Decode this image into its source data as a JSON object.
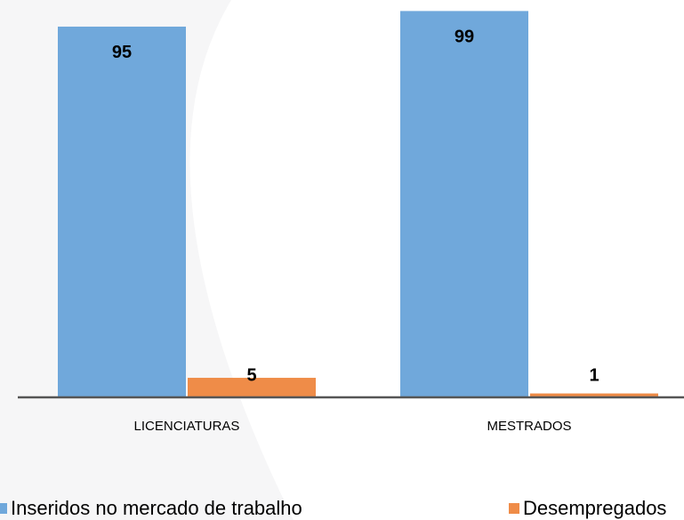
{
  "chart_data": {
    "type": "bar",
    "categories": [
      "LICENCIATURAS",
      "MESTRADOS"
    ],
    "series": [
      {
        "name": "Inseridos no mercado de trabalho",
        "color": "#70a8db",
        "values": [
          95,
          99
        ]
      },
      {
        "name": "Desempregados",
        "color": "#ef8c48",
        "values": [
          5,
          1
        ]
      }
    ],
    "ylim": [
      0,
      100
    ],
    "legend": "bottom"
  }
}
